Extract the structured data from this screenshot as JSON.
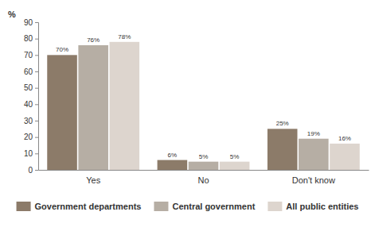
{
  "chart_data": {
    "type": "bar",
    "y_label": "%",
    "categories": [
      "Yes",
      "No",
      "Don't know"
    ],
    "series": [
      {
        "name": "Government departments",
        "color": "#8c7b69",
        "values": [
          70,
          6,
          25
        ],
        "value_labels": [
          "70%",
          "6%",
          "25%"
        ]
      },
      {
        "name": "Central government",
        "color": "#b6aea4",
        "values": [
          76,
          5,
          19
        ],
        "value_labels": [
          "76%",
          "5%",
          "19%"
        ]
      },
      {
        "name": "All public entities",
        "color": "#ddd5ce",
        "values": [
          78,
          5,
          16
        ],
        "value_labels": [
          "78%",
          "5%",
          "16%"
        ]
      }
    ],
    "ylim": [
      0,
      90
    ],
    "yticks": [
      0,
      10,
      20,
      30,
      40,
      50,
      60,
      70,
      80,
      90
    ],
    "grid": false,
    "legend": "bottom",
    "data_labels": true
  }
}
